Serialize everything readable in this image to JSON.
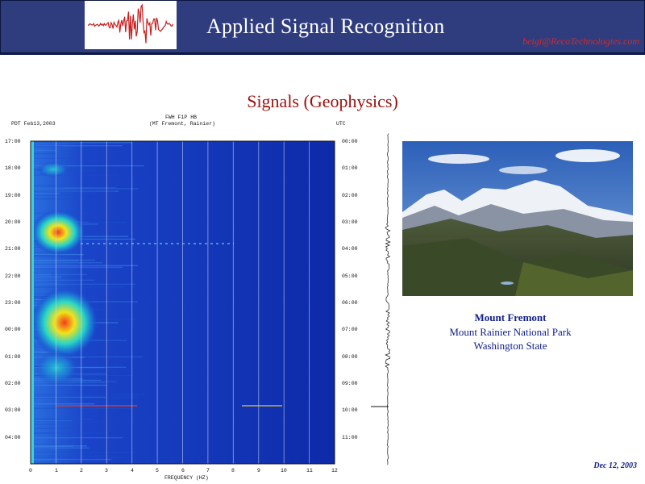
{
  "header": {
    "title": "Applied Signal Recognition",
    "email": "beigi@RecoTechnologies.com"
  },
  "slide": {
    "title": "Signals (Geophysics)",
    "date": "Dec 12, 2003"
  },
  "seismogram": {
    "left_top_label": "PDT  Feb13,2003",
    "center_top_label_1": "FWH F1P HB",
    "center_top_label_2": "(MT Fremont, Rainier)",
    "right_top_label": "UTC",
    "left_times": [
      "17:00",
      "18:00",
      "19:00",
      "20:00",
      "21:00",
      "22:00",
      "23:00",
      "00:00",
      "01:00",
      "02:00",
      "03:00",
      "04:00"
    ],
    "right_times": [
      "00:00",
      "01:00",
      "02:00",
      "03:00",
      "04:00",
      "05:00",
      "06:00",
      "07:00",
      "08:00",
      "09:00",
      "10:00",
      "11:00"
    ],
    "freq_ticks": [
      "0",
      "1",
      "2",
      "3",
      "4",
      "5",
      "6",
      "7",
      "8",
      "9",
      "10",
      "11",
      "12"
    ],
    "xlabel": "FREQUENCY (HZ)"
  },
  "photo_caption": {
    "name": "Mount Fremont",
    "park": "Mount Rainier National Park",
    "state": "Washington State"
  }
}
